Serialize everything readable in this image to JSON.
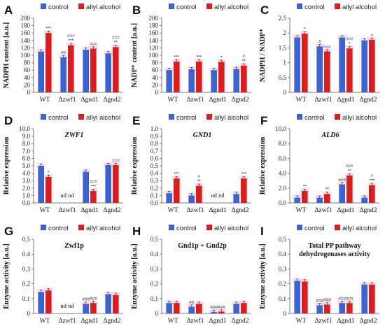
{
  "colors": {
    "control": "#3b62d6",
    "allyl": "#e31a1c"
  },
  "legend": {
    "control": "control",
    "allyl": "allyl alcohol"
  },
  "nd_label": "nd",
  "chart_data": [
    {
      "letter": "A",
      "type": "bar",
      "title": "",
      "ylabel": "NADPH content [a.u.]",
      "ylim": [
        0,
        200
      ],
      "yticks": [
        "0",
        "20",
        "40",
        "60",
        "80",
        "100",
        "120",
        "140",
        "160",
        "180",
        "200"
      ],
      "categories": [
        "WT",
        "Δzwf1",
        "Δgnd1",
        "Δgnd2"
      ],
      "series": [
        {
          "name": "control",
          "values": [
            110,
            95,
            115,
            105
          ]
        },
        {
          "name": "allyl alcohol",
          "values": [
            160,
            127,
            118,
            122
          ]
        }
      ],
      "annotations": [
        {
          "cat": 0,
          "series": 1,
          "lines": [
            {
              "t": "***",
              "c": "k"
            }
          ]
        },
        {
          "cat": 1,
          "series": 0,
          "lines": [
            {
              "t": "##",
              "c": "k"
            }
          ]
        },
        {
          "cat": 1,
          "series": 1,
          "lines": [
            {
              "t": "###",
              "c": "p"
            },
            {
              "t": "***",
              "c": "k"
            }
          ]
        },
        {
          "cat": 2,
          "series": 1,
          "lines": [
            {
              "t": "###",
              "c": "p"
            }
          ]
        },
        {
          "cat": 3,
          "series": 1,
          "lines": [
            {
              "t": "###",
              "c": "p"
            },
            {
              "t": "**",
              "c": "k"
            }
          ]
        }
      ]
    },
    {
      "letter": "B",
      "type": "bar",
      "title": "",
      "ylabel": "NADP⁺ content [a.u.]",
      "ylim": [
        0,
        200
      ],
      "yticks": [
        "0",
        "20",
        "40",
        "60",
        "80",
        "100",
        "120",
        "140",
        "160",
        "180",
        "200"
      ],
      "categories": [
        "WT",
        "Δzwf1",
        "Δgnd1",
        "Δgnd2"
      ],
      "series": [
        {
          "name": "control",
          "values": [
            60,
            62,
            60,
            63
          ]
        },
        {
          "name": "allyl alcohol",
          "values": [
            83,
            83,
            82,
            72
          ]
        }
      ],
      "annotations": [
        {
          "cat": 0,
          "series": 1,
          "lines": [
            {
              "t": "***",
              "c": "k"
            }
          ]
        },
        {
          "cat": 1,
          "series": 1,
          "lines": [
            {
              "t": "***",
              "c": "k"
            }
          ]
        },
        {
          "cat": 2,
          "series": 1,
          "lines": [
            {
              "t": "*",
              "c": "k"
            }
          ]
        },
        {
          "cat": 3,
          "series": 1,
          "lines": [
            {
              "t": "#",
              "c": "p"
            },
            {
              "t": "**",
              "c": "k"
            }
          ]
        }
      ]
    },
    {
      "letter": "C",
      "type": "bar",
      "title": "",
      "ylabel": "NADPH / NADP⁺",
      "ylim": [
        0,
        2.5
      ],
      "yticks": [
        "0",
        "0.5",
        "1",
        "1.5",
        "2",
        "2.5"
      ],
      "categories": [
        "WT",
        "Δzwf1",
        "Δgnd1",
        "Δgnd2"
      ],
      "series": [
        {
          "name": "control",
          "values": [
            1.85,
            1.55,
            1.85,
            1.75
          ]
        },
        {
          "name": "allyl alcohol",
          "values": [
            1.98,
            1.38,
            1.48,
            1.77
          ]
        }
      ],
      "annotations": [
        {
          "cat": 0,
          "series": 1,
          "lines": [
            {
              "t": "*",
              "c": "k"
            }
          ]
        },
        {
          "cat": 1,
          "series": 0,
          "lines": [
            {
              "t": "#",
              "c": "k"
            }
          ]
        },
        {
          "cat": 1,
          "series": 1,
          "lines": [
            {
              "t": "###",
              "c": "p"
            }
          ]
        },
        {
          "cat": 2,
          "series": 1,
          "lines": [
            {
              "t": "###",
              "c": "p"
            },
            {
              "t": "*",
              "c": "k"
            }
          ]
        },
        {
          "cat": 3,
          "series": 1,
          "lines": [
            {
              "t": "#",
              "c": "p"
            }
          ]
        }
      ]
    },
    {
      "letter": "D",
      "type": "bar",
      "title": "ZWF1",
      "title_italic": true,
      "ylabel": "Relative expression",
      "ylim": [
        0,
        10
      ],
      "yticks": [
        "0.0",
        "1.0",
        "2.0",
        "3.0",
        "4.0",
        "5.0",
        "6.0",
        "7.0",
        "8.0",
        "9.0",
        "10.0"
      ],
      "categories": [
        "WT",
        "Δzwf1",
        "Δgnd1",
        "Δgnd2"
      ],
      "series": [
        {
          "name": "control",
          "values": [
            5.0,
            null,
            4.2,
            5.1
          ]
        },
        {
          "name": "allyl alcohol",
          "values": [
            3.5,
            null,
            1.6,
            5.1
          ]
        }
      ],
      "annotations": [
        {
          "cat": 0,
          "series": 1,
          "lines": [
            {
              "t": "*",
              "c": "k"
            }
          ]
        },
        {
          "cat": 2,
          "series": 1,
          "lines": [
            {
              "t": "###",
              "c": "p"
            },
            {
              "t": "***",
              "c": "k"
            }
          ]
        },
        {
          "cat": 3,
          "series": 1,
          "lines": [
            {
              "t": "###",
              "c": "p"
            }
          ]
        }
      ],
      "nd_cats": [
        1
      ]
    },
    {
      "letter": "E",
      "type": "bar",
      "title": "GND1",
      "title_italic": true,
      "ylabel": "Relative expression",
      "ylim": [
        0,
        1.0
      ],
      "yticks": [
        "0.0",
        "0.1",
        "0.2",
        "0.3",
        "0.4",
        "0.5",
        "0.6",
        "0.7",
        "0.8",
        "0.9",
        "1.0"
      ],
      "categories": [
        "WT",
        "Δzwf1",
        "Δgnd1",
        "Δgnd2"
      ],
      "series": [
        {
          "name": "control",
          "values": [
            0.13,
            0.1,
            null,
            0.12
          ]
        },
        {
          "name": "allyl alcohol",
          "values": [
            0.33,
            0.23,
            null,
            0.33
          ]
        }
      ],
      "annotations": [
        {
          "cat": 0,
          "series": 1,
          "lines": [
            {
              "t": "***",
              "c": "k"
            }
          ]
        },
        {
          "cat": 1,
          "series": 1,
          "lines": [
            {
              "t": "#",
              "c": "p"
            },
            {
              "t": "**",
              "c": "k"
            }
          ]
        },
        {
          "cat": 3,
          "series": 1,
          "lines": [
            {
              "t": "***",
              "c": "k"
            }
          ]
        }
      ],
      "nd_cats": [
        2
      ]
    },
    {
      "letter": "F",
      "type": "bar",
      "title": "ALD6",
      "title_italic": true,
      "ylabel": "Relative expression",
      "ylim": [
        0,
        10
      ],
      "yticks": [
        "0.0",
        "2.0",
        "4.0",
        "6.0",
        "8.0",
        "10.0"
      ],
      "categories": [
        "WT",
        "Δzwf1",
        "Δgnd1",
        "Δgnd2"
      ],
      "series": [
        {
          "name": "control",
          "values": [
            0.7,
            0.7,
            2.5,
            0.7
          ]
        },
        {
          "name": "allyl alcohol",
          "values": [
            1.6,
            1.2,
            3.7,
            2.4
          ]
        }
      ],
      "annotations": [
        {
          "cat": 0,
          "series": 1,
          "lines": [
            {
              "t": "**",
              "c": "k"
            }
          ]
        },
        {
          "cat": 1,
          "series": 1,
          "lines": [
            {
              "t": "**",
              "c": "k"
            }
          ]
        },
        {
          "cat": 2,
          "series": 1,
          "lines": [
            {
              "t": "###",
              "c": "p"
            },
            {
              "t": "**",
              "c": "k"
            }
          ]
        },
        {
          "cat": 2,
          "series": 0,
          "lines": [
            {
              "t": "###",
              "c": "k"
            }
          ]
        },
        {
          "cat": 3,
          "series": 1,
          "lines": [
            {
              "t": "#",
              "c": "p"
            },
            {
              "t": "***",
              "c": "k"
            }
          ]
        }
      ]
    },
    {
      "letter": "G",
      "type": "bar",
      "title": "Zwf1p",
      "title_italic": false,
      "ylabel": "Enzyme activity [a.u.]",
      "ylim": [
        0,
        0.5
      ],
      "yticks": [
        "0",
        "0.1",
        "0.2",
        "0.3",
        "0.4",
        "0.5"
      ],
      "categories": [
        "WT",
        "Δzwf1",
        "Δgnd1",
        "Δgnd2"
      ],
      "series": [
        {
          "name": "control",
          "values": [
            0.145,
            null,
            0.065,
            0.13
          ]
        },
        {
          "name": "allyl alcohol",
          "values": [
            0.155,
            null,
            0.07,
            0.125
          ]
        }
      ],
      "annotations": [
        {
          "cat": 2,
          "series": 0,
          "lines": [
            {
              "t": "###",
              "c": "k"
            }
          ]
        },
        {
          "cat": 2,
          "series": 1,
          "lines": [
            {
              "t": "###",
              "c": "k"
            }
          ]
        }
      ],
      "nd_cats": [
        1
      ]
    },
    {
      "letter": "H",
      "type": "bar",
      "title": "Gnd1p + Gnd2p",
      "title_italic": false,
      "ylabel": "Enzyme activity [a.u.]",
      "ylim": [
        0,
        0.5
      ],
      "yticks": [
        "0",
        "0.1",
        "0.2",
        "0.3",
        "0.4",
        "0.5"
      ],
      "categories": [
        "WT",
        "Δzwf1",
        "Δgnd1",
        "Δgnd2"
      ],
      "series": [
        {
          "name": "control",
          "values": [
            0.07,
            0.045,
            0.01,
            0.065
          ]
        },
        {
          "name": "allyl alcohol",
          "values": [
            0.07,
            0.065,
            0.012,
            0.07
          ]
        }
      ],
      "annotations": [
        {
          "cat": 1,
          "series": 0,
          "lines": [
            {
              "t": "##",
              "c": "k"
            }
          ]
        },
        {
          "cat": 2,
          "series": 0,
          "lines": [
            {
              "t": "###",
              "c": "k"
            }
          ]
        },
        {
          "cat": 2,
          "series": 1,
          "lines": [
            {
              "t": "###",
              "c": "k"
            }
          ]
        }
      ]
    },
    {
      "letter": "I",
      "type": "bar",
      "title": "Total PP pathway dehydrogenases activity",
      "title_lines": [
        "Total PP pathway",
        "dehydrogenases activity"
      ],
      "title_italic": false,
      "ylabel": "Enzyme activity [a.u.]",
      "ylim": [
        0,
        0.5
      ],
      "yticks": [
        "0",
        "0.1",
        "0.2",
        "0.3",
        "0.4",
        "0.5"
      ],
      "categories": [
        "WT",
        "Δzwf1",
        "Δgnd1",
        "Δgnd2"
      ],
      "series": [
        {
          "name": "control",
          "values": [
            0.22,
            0.055,
            0.07,
            0.195
          ]
        },
        {
          "name": "allyl alcohol",
          "values": [
            0.215,
            0.06,
            0.07,
            0.195
          ]
        }
      ],
      "annotations": [
        {
          "cat": 1,
          "series": 0,
          "lines": [
            {
              "t": "###",
              "c": "k"
            }
          ]
        },
        {
          "cat": 1,
          "series": 1,
          "lines": [
            {
              "t": "###",
              "c": "k"
            }
          ]
        },
        {
          "cat": 2,
          "series": 0,
          "lines": [
            {
              "t": "###",
              "c": "k"
            }
          ]
        },
        {
          "cat": 2,
          "series": 1,
          "lines": [
            {
              "t": "###",
              "c": "k"
            }
          ]
        }
      ]
    }
  ]
}
